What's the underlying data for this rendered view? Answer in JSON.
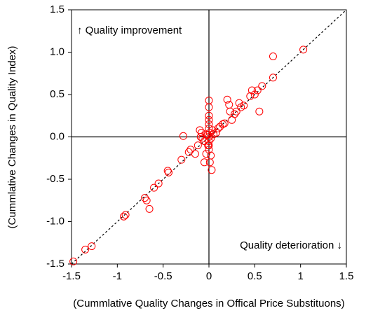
{
  "chart_data": {
    "type": "scatter",
    "xlabel": "(Cummlative Quality Changes in Offical Price Substituons)",
    "ylabel": "(Cummlative Changes in Quality Index)",
    "annotations": [
      "↑ Quality improvement",
      "Quality deterioration ↓"
    ],
    "color": "#ff0000",
    "xlim": [
      -1.5,
      1.5
    ],
    "ylim": [
      -1.5,
      1.5
    ],
    "xticks": [
      -1.5,
      -1,
      -0.5,
      0,
      0.5,
      1,
      1.5
    ],
    "yticks": [
      1.5,
      {
        "value": 1,
        "label": "1.0"
      },
      0.5,
      {
        "value": 0,
        "label": "0.0"
      },
      -0.5,
      {
        "value": -1,
        "label": "-1.0"
      },
      -1.5
    ],
    "x": [
      -1.48,
      -1.35,
      -1.28,
      -0.93,
      -0.91,
      -0.7,
      -0.68,
      -0.65,
      -0.6,
      -0.55,
      -0.45,
      -0.44,
      -0.3,
      -0.28,
      -0.22,
      -0.2,
      -0.15,
      -0.12,
      -0.1,
      -0.08,
      -0.05,
      -0.05,
      -0.03,
      -0.02,
      -0.01,
      0,
      0,
      0,
      0,
      0,
      0,
      0,
      0,
      0,
      0,
      0.01,
      0.02,
      0.03,
      0.02,
      0.05,
      0.08,
      0.1,
      0.12,
      0.15,
      0.17,
      0.2,
      0.22,
      0.23,
      0.25,
      0.28,
      0.3,
      0.33,
      0.35,
      0.38,
      0.45,
      0.47,
      0.5,
      0.53,
      0.55,
      0.58,
      0.7,
      0.7,
      1.03,
      -0.07,
      -0.09,
      0.04,
      -0.03,
      0.01
    ],
    "values": [
      -1.47,
      -1.33,
      -1.29,
      -0.94,
      -0.92,
      -0.72,
      -0.75,
      -0.85,
      -0.6,
      -0.55,
      -0.4,
      -0.42,
      -0.27,
      0.01,
      -0.18,
      -0.15,
      -0.2,
      -0.1,
      0.08,
      0.05,
      -0.05,
      -0.3,
      -0.2,
      0.02,
      -0.1,
      0,
      0.1,
      0.15,
      0.2,
      0.25,
      0.35,
      0.43,
      -0.05,
      -0.1,
      -0.15,
      0.05,
      -0.02,
      -0.39,
      -0.22,
      0.03,
      0.05,
      0.1,
      0.12,
      0.15,
      0.16,
      0.44,
      0.38,
      0.3,
      0.2,
      0.27,
      0.3,
      0.4,
      0.35,
      0.37,
      0.48,
      0.55,
      0.5,
      0.55,
      0.3,
      0.6,
      0.7,
      0.95,
      1.03,
      -0.02,
      0,
      0.08,
      0.03,
      -0.3
    ]
  }
}
